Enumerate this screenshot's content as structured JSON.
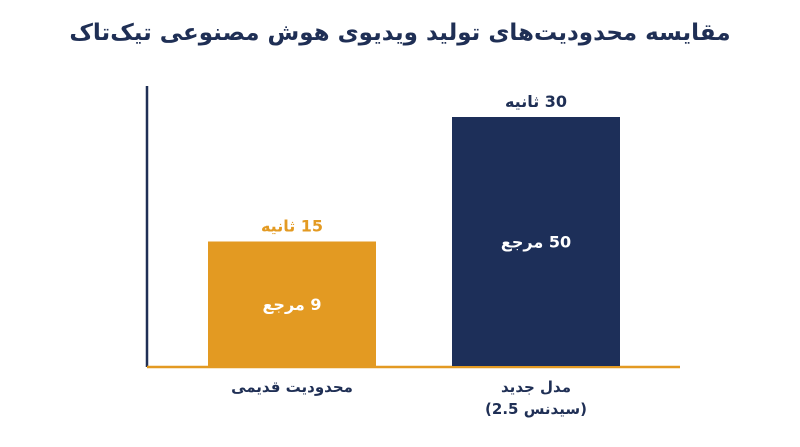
{
  "chart_data": {
    "type": "bar",
    "title": "مقایسه محدودیت‌های تولید ویدیوی هوش مصنوعی تیک‌تاک",
    "categories": [
      [
        "محدودیت قدیمی"
      ],
      [
        "مدل جدید",
        "(سیدنس 2.5)"
      ]
    ],
    "values": [
      15,
      30
    ],
    "value_labels": [
      "15 ثانیه",
      "30 ثانیه"
    ],
    "inner_labels": [
      "9 مرجع",
      "50 مرجع"
    ],
    "colors": [
      "#e39a22",
      "#1d2f59"
    ],
    "value_label_colors": [
      "#e39a22",
      "#1f2f55"
    ],
    "axis_color": "#e39a22",
    "ylim": [
      0,
      30
    ],
    "grid": false,
    "legend": "none"
  }
}
